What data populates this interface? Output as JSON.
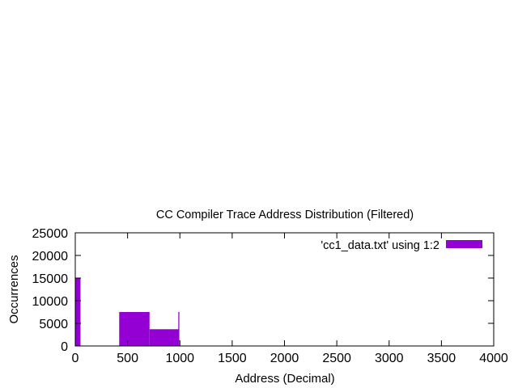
{
  "chart_data": {
    "type": "bar",
    "title": "CC Compiler Trace Address Distribution (Filtered)",
    "xlabel": "Address (Decimal)",
    "ylabel": "Occurrences",
    "xlim": [
      0,
      4000
    ],
    "ylim": [
      0,
      25000
    ],
    "xticks": [
      0,
      500,
      1000,
      1500,
      2000,
      2500,
      3000,
      3500,
      4000
    ],
    "yticks": [
      0,
      5000,
      10000,
      15000,
      20000,
      25000
    ],
    "series": [
      {
        "name": "'cc1_data.txt' using 1:2",
        "color": "#9400d3",
        "bars": [
          {
            "x0": 0,
            "x1": 50,
            "y": 15000
          },
          {
            "x0": 420,
            "x1": 710,
            "y": 7500
          },
          {
            "x0": 710,
            "x1": 990,
            "y": 3700
          },
          {
            "x0": 985,
            "x1": 995,
            "y": 7500
          }
        ]
      }
    ],
    "legend_position": "top-right",
    "grid": false
  }
}
